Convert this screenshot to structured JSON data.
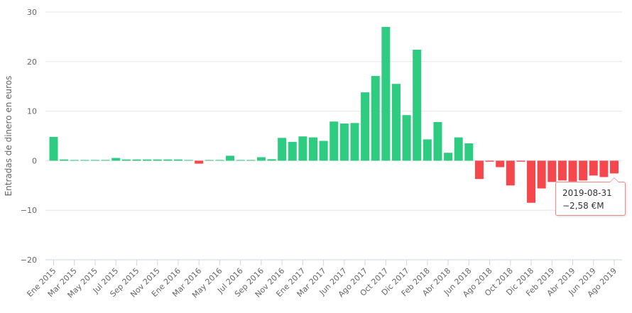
{
  "chart_data": {
    "type": "bar",
    "title": "",
    "xlabel": "",
    "ylabel": "Entradas de dinero en euros",
    "ylim": [
      -20,
      30
    ],
    "yticks": [
      30,
      20,
      10,
      0,
      -10,
      -20
    ],
    "grid": true,
    "positive_color": "#2ecc80",
    "negative_color": "#f6474d",
    "categories": [
      "Ene 2015",
      "Feb 2015",
      "Mar 2015",
      "Abr 2015",
      "May 2015",
      "Jun 2015",
      "Jul 2015",
      "Ago 2015",
      "Sep 2015",
      "Oct 2015",
      "Nov 2015",
      "Dic 2015",
      "Ene 2016",
      "Feb 2016",
      "Mar 2016",
      "Abr 2016",
      "May 2016",
      "Jun 2016",
      "Jul 2016",
      "Ago 2016",
      "Sep 2016",
      "Oct 2016",
      "Nov 2016",
      "Dic 2016",
      "Ene 2017",
      "Feb 2017",
      "Mar 2017",
      "Abr 2017",
      "Jun 2017",
      "Jul 2017",
      "Ago 2017",
      "Sep 2017",
      "Oct 2017",
      "Nov 2017",
      "Dic 2017",
      "Ene 2018",
      "Feb 2018",
      "Mar 2018",
      "Abr 2018",
      "May 2018",
      "Jun 2018",
      "Jul 2018",
      "Ago 2018",
      "Sep 2018",
      "Oct 2018",
      "Nov 2018",
      "Dic 2018",
      "Ene 2019",
      "Feb 2019",
      "Mar 2019",
      "Abr 2019",
      "May 2019",
      "Jun 2019",
      "Jul 2019",
      "Ago 2019"
    ],
    "values": [
      4.8,
      0.25,
      0.1,
      0.1,
      0.1,
      0.0,
      0.55,
      0.25,
      0.25,
      0.25,
      0.25,
      0.25,
      0.25,
      0.1,
      -0.6,
      0.1,
      0.0,
      1.0,
      0.0,
      0.1,
      0.7,
      0.3,
      4.6,
      3.8,
      4.9,
      4.7,
      4.0,
      7.9,
      7.5,
      7.6,
      13.8,
      17.1,
      27.0,
      15.5,
      9.2,
      22.4,
      4.3,
      7.8,
      1.6,
      4.7,
      3.5,
      -3.7,
      -0.2,
      -1.3,
      -5.0,
      -0.2,
      -8.5,
      -5.6,
      -4.3,
      -4.0,
      -4.2,
      -4.0,
      -3.0,
      -3.3,
      -2.58
    ],
    "xtick_labels": [
      "Ene 2015",
      "Mar 2015",
      "May 2015",
      "Jul 2015",
      "Sep 2015",
      "Nov 2015",
      "Ene 2016",
      "Mar 2016",
      "May 2016",
      "Jul 2016",
      "Sep 2016",
      "Nov 2016",
      "Ene 2017",
      "Mar 2017",
      "Jun 2017",
      "Ago 2017",
      "Oct 2017",
      "Dic 2017",
      "Feb 2018",
      "Abr 2018",
      "Jun 2018",
      "Ago 2018",
      "Oct 2018",
      "Dic 2018",
      "Feb 2019",
      "Abr 2019",
      "Jun 2019",
      "Ago 2019"
    ],
    "xtick_indices": [
      0,
      2,
      4,
      6,
      8,
      10,
      12,
      14,
      16,
      18,
      20,
      22,
      24,
      26,
      28,
      30,
      32,
      34,
      36,
      38,
      40,
      42,
      44,
      46,
      48,
      50,
      52,
      54
    ],
    "tooltip": {
      "date": "2019-08-31",
      "value": "−2,58 €M"
    }
  }
}
